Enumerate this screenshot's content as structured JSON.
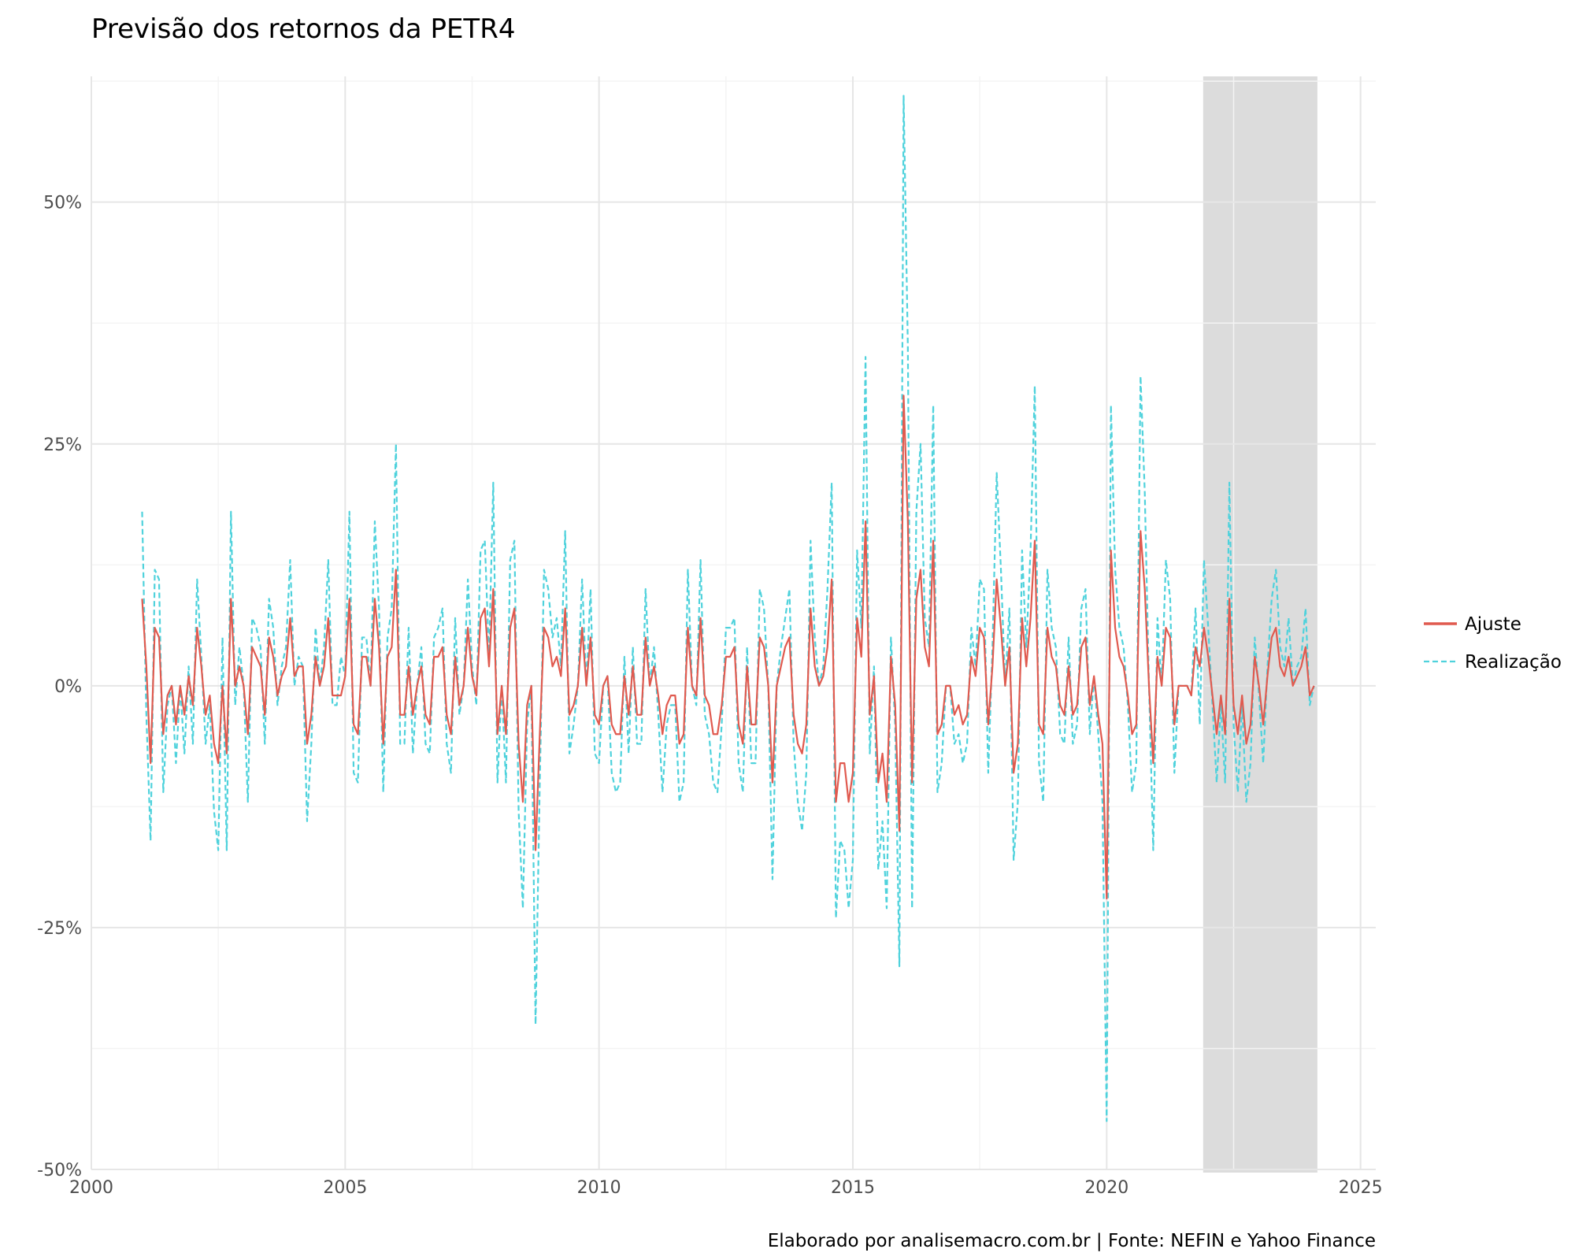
{
  "chart_data": {
    "type": "line",
    "title": "Previsão dos retornos da PETR4",
    "xlabel": "",
    "ylabel": "",
    "caption": "Elaborado por analisemacro.com.br | Fonte: NEFIN e Yahoo Finance",
    "xlim": [
      2000,
      2025.3
    ],
    "ylim": [
      -0.5,
      0.63
    ],
    "x_ticks": [
      2000,
      2005,
      2010,
      2015,
      2020,
      2025
    ],
    "x_tick_labels": [
      "2000",
      "2005",
      "2010",
      "2015",
      "2020",
      "2025"
    ],
    "y_ticks": [
      -0.5,
      -0.25,
      0,
      0.25,
      0.5
    ],
    "y_tick_labels": [
      "-50%",
      "-25%",
      "0%",
      "25%",
      "50%"
    ],
    "grid": true,
    "legend_position": "right",
    "shaded_region": {
      "x": [
        2021.9,
        2024.15
      ],
      "color": "#dcdcdc"
    },
    "colors": {
      "ajuste": "#e05a4f",
      "realizacao": "#4fd2dc"
    },
    "x_start": 2001.0,
    "x_step": 0.083333,
    "series": [
      {
        "name": "Ajuste",
        "style": "solid",
        "values": [
          0.09,
          0.02,
          -0.08,
          0.06,
          0.05,
          -0.05,
          -0.01,
          0.0,
          -0.04,
          0.0,
          -0.03,
          0.01,
          -0.02,
          0.06,
          0.02,
          -0.03,
          -0.01,
          -0.06,
          -0.08,
          0.0,
          -0.07,
          0.09,
          0.0,
          0.02,
          0.0,
          -0.05,
          0.04,
          0.03,
          0.02,
          -0.03,
          0.05,
          0.03,
          -0.01,
          0.01,
          0.02,
          0.07,
          0.01,
          0.02,
          0.02,
          -0.06,
          -0.03,
          0.03,
          0.0,
          0.02,
          0.07,
          -0.01,
          -0.01,
          -0.01,
          0.01,
          0.09,
          -0.04,
          -0.05,
          0.03,
          0.03,
          0.0,
          0.09,
          0.04,
          -0.06,
          0.03,
          0.04,
          0.12,
          -0.03,
          -0.03,
          0.02,
          -0.03,
          0.0,
          0.02,
          -0.03,
          -0.04,
          0.03,
          0.03,
          0.04,
          -0.03,
          -0.05,
          0.03,
          -0.02,
          0.0,
          0.06,
          0.01,
          -0.01,
          0.07,
          0.08,
          0.02,
          0.1,
          -0.05,
          0.0,
          -0.05,
          0.06,
          0.08,
          -0.06,
          -0.12,
          -0.02,
          0.0,
          -0.17,
          -0.05,
          0.06,
          0.05,
          0.02,
          0.03,
          0.01,
          0.08,
          -0.03,
          -0.02,
          0.0,
          0.06,
          0.0,
          0.05,
          -0.03,
          -0.04,
          0.0,
          0.01,
          -0.04,
          -0.05,
          -0.05,
          0.01,
          -0.03,
          0.02,
          -0.03,
          -0.03,
          0.05,
          0.0,
          0.02,
          -0.01,
          -0.05,
          -0.02,
          -0.01,
          -0.01,
          -0.06,
          -0.05,
          0.06,
          0.0,
          -0.01,
          0.07,
          -0.01,
          -0.02,
          -0.05,
          -0.05,
          -0.02,
          0.03,
          0.03,
          0.04,
          -0.04,
          -0.06,
          0.02,
          -0.04,
          -0.04,
          0.05,
          0.04,
          0.0,
          -0.1,
          0.0,
          0.02,
          0.04,
          0.05,
          -0.03,
          -0.06,
          -0.07,
          -0.04,
          0.08,
          0.02,
          0.0,
          0.01,
          0.04,
          0.11,
          -0.12,
          -0.08,
          -0.08,
          -0.12,
          -0.09,
          0.07,
          0.03,
          0.17,
          -0.03,
          0.01,
          -0.1,
          -0.07,
          -0.12,
          0.03,
          -0.02,
          -0.15,
          0.3,
          0.17,
          -0.1,
          0.09,
          0.12,
          0.04,
          0.02,
          0.15,
          -0.05,
          -0.04,
          0.0,
          0.0,
          -0.03,
          -0.02,
          -0.04,
          -0.03,
          0.03,
          0.01,
          0.06,
          0.05,
          -0.04,
          0.02,
          0.11,
          0.06,
          0.0,
          0.04,
          -0.09,
          -0.06,
          0.07,
          0.02,
          0.07,
          0.15,
          -0.04,
          -0.05,
          0.06,
          0.03,
          0.02,
          -0.02,
          -0.03,
          0.02,
          -0.03,
          -0.02,
          0.04,
          0.05,
          -0.02,
          0.01,
          -0.03,
          -0.06,
          -0.22,
          0.14,
          0.06,
          0.03,
          0.02,
          -0.01,
          -0.05,
          -0.04,
          0.16,
          0.1,
          0.0,
          -0.08,
          0.03,
          0.0,
          0.06,
          0.05,
          -0.04,
          0.0,
          0.0,
          0.0,
          -0.01,
          0.04,
          0.02,
          0.06,
          0.03,
          -0.01,
          -0.05,
          -0.01,
          -0.05,
          0.09,
          -0.02,
          -0.05,
          -0.01,
          -0.06,
          -0.04,
          0.03,
          0.0,
          -0.04,
          0.01,
          0.05,
          0.06,
          0.02,
          0.01,
          0.03,
          0.0,
          0.01,
          0.02,
          0.04,
          -0.01,
          0.0
        ]
      },
      {
        "name": "Realização",
        "style": "dashed",
        "values": [
          0.18,
          -0.03,
          -0.16,
          0.12,
          0.11,
          -0.11,
          -0.02,
          0.0,
          -0.08,
          0.0,
          -0.07,
          0.02,
          -0.06,
          0.11,
          0.03,
          -0.06,
          -0.02,
          -0.13,
          -0.17,
          0.05,
          -0.17,
          0.18,
          -0.02,
          0.04,
          0.0,
          -0.12,
          0.07,
          0.06,
          0.04,
          -0.06,
          0.09,
          0.06,
          -0.02,
          0.02,
          0.04,
          0.13,
          0.0,
          0.03,
          0.02,
          -0.14,
          -0.06,
          0.06,
          0.0,
          0.04,
          0.13,
          -0.02,
          -0.02,
          0.03,
          0.01,
          0.18,
          -0.09,
          -0.1,
          0.05,
          0.05,
          0.0,
          0.17,
          0.08,
          -0.11,
          0.05,
          0.08,
          0.25,
          -0.06,
          -0.06,
          0.06,
          -0.07,
          0.0,
          0.04,
          -0.06,
          -0.07,
          0.05,
          0.06,
          0.08,
          -0.06,
          -0.09,
          0.07,
          -0.03,
          0.0,
          0.11,
          0.02,
          -0.02,
          0.14,
          0.15,
          0.03,
          0.21,
          -0.1,
          0.0,
          -0.1,
          0.13,
          0.15,
          -0.13,
          -0.23,
          -0.04,
          0.0,
          -0.35,
          -0.1,
          0.12,
          0.1,
          0.05,
          0.07,
          0.02,
          0.16,
          -0.07,
          -0.04,
          0.0,
          0.11,
          0.0,
          0.1,
          -0.07,
          -0.08,
          0.0,
          0.01,
          -0.09,
          -0.11,
          -0.1,
          0.03,
          -0.07,
          0.04,
          -0.06,
          -0.06,
          0.1,
          0.0,
          0.04,
          -0.03,
          -0.11,
          -0.04,
          -0.02,
          -0.02,
          -0.12,
          -0.1,
          0.12,
          0.0,
          -0.02,
          0.13,
          -0.03,
          -0.05,
          -0.1,
          -0.11,
          -0.04,
          0.06,
          0.06,
          0.07,
          -0.08,
          -0.11,
          0.04,
          -0.08,
          -0.08,
          0.1,
          0.08,
          0.0,
          -0.2,
          0.0,
          0.04,
          0.07,
          0.1,
          -0.06,
          -0.12,
          -0.15,
          -0.09,
          0.15,
          0.05,
          0.0,
          0.02,
          0.1,
          0.21,
          -0.24,
          -0.16,
          -0.17,
          -0.23,
          -0.18,
          0.14,
          0.06,
          0.34,
          -0.07,
          0.02,
          -0.19,
          -0.14,
          -0.23,
          0.05,
          -0.04,
          -0.29,
          0.61,
          0.35,
          -0.23,
          0.18,
          0.25,
          0.07,
          0.04,
          0.29,
          -0.11,
          -0.08,
          0.0,
          0.0,
          -0.06,
          -0.05,
          -0.08,
          -0.06,
          0.06,
          0.02,
          0.11,
          0.1,
          -0.09,
          0.04,
          0.22,
          0.12,
          0.0,
          0.08,
          -0.18,
          -0.12,
          0.14,
          0.04,
          0.14,
          0.31,
          -0.08,
          -0.12,
          0.12,
          0.06,
          0.04,
          -0.05,
          -0.06,
          0.05,
          -0.06,
          -0.04,
          0.08,
          0.1,
          -0.05,
          0.01,
          -0.05,
          -0.12,
          -0.45,
          0.29,
          0.12,
          0.06,
          0.04,
          -0.02,
          -0.11,
          -0.08,
          0.32,
          0.2,
          0.0,
          -0.17,
          0.07,
          0.0,
          0.13,
          0.09,
          -0.09,
          0.0,
          0.0,
          0.0,
          -0.01,
          0.08,
          -0.04,
          0.13,
          0.06,
          -0.02,
          -0.1,
          -0.02,
          -0.1,
          0.21,
          -0.04,
          -0.11,
          -0.02,
          -0.12,
          -0.08,
          0.05,
          -0.01,
          -0.08,
          0.02,
          0.09,
          0.12,
          0.04,
          0.02,
          0.07,
          0.0,
          0.02,
          0.03,
          0.08,
          -0.02,
          0.0
        ]
      }
    ]
  }
}
